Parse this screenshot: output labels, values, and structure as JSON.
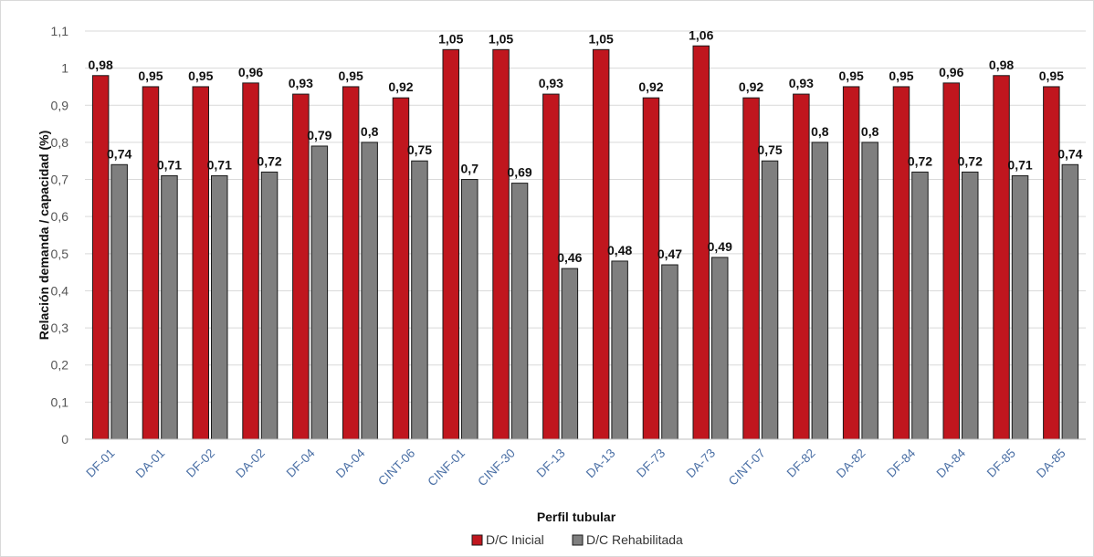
{
  "chart_data": {
    "type": "bar",
    "title": "",
    "xlabel": "Perfil tubular",
    "ylabel": "Relación demanda / capacidad (%)",
    "ylim": [
      0,
      1.1
    ],
    "yticks": [
      "0",
      "0,1",
      "0,2",
      "0,3",
      "0,4",
      "0,5",
      "0,6",
      "0,7",
      "0,8",
      "0,9",
      "1",
      "1,1"
    ],
    "grid": true,
    "legend_position": "bottom",
    "categories": [
      "DF-01",
      "DA-01",
      "DF-02",
      "DA-02",
      "DF-04",
      "DA-04",
      "CINT-06",
      "CINF-01",
      "CINF-30",
      "DF-13",
      "DA-13",
      "DF-73",
      "DA-73",
      "CINT-07",
      "DF-82",
      "DA-82",
      "DF-84",
      "DA-84",
      "DF-85",
      "DA-85"
    ],
    "series": [
      {
        "name": "D/C Inicial",
        "color": "#c0161e",
        "values": [
          0.98,
          0.95,
          0.95,
          0.96,
          0.93,
          0.95,
          0.92,
          1.05,
          1.05,
          0.93,
          1.05,
          0.92,
          1.06,
          0.92,
          0.93,
          0.95,
          0.95,
          0.96,
          0.98,
          0.95
        ],
        "labels": [
          "0,98",
          "0,95",
          "0,95",
          "0,96",
          "0,93",
          "0,95",
          "0,92",
          "1,05",
          "1,05",
          "0,93",
          "1,05",
          "0,92",
          "1,06",
          "0,92",
          "0,93",
          "0,95",
          "0,95",
          "0,96",
          "0,98",
          "0,95"
        ]
      },
      {
        "name": "D/C Rehabilitada",
        "color": "#7f7f7f",
        "values": [
          0.74,
          0.71,
          0.71,
          0.72,
          0.79,
          0.8,
          0.75,
          0.7,
          0.69,
          0.46,
          0.48,
          0.47,
          0.49,
          0.75,
          0.8,
          0.8,
          0.72,
          0.72,
          0.71,
          0.74
        ],
        "labels": [
          "0,74",
          "0,71",
          "0,71",
          "0,72",
          "0,79",
          "0,8",
          "0,75",
          "0,7",
          "0,69",
          "0,46",
          "0,48",
          "0,47",
          "0,49",
          "0,75",
          "0,8",
          "0,8",
          "0,72",
          "0,72",
          "0,71",
          "0,74"
        ]
      }
    ]
  }
}
